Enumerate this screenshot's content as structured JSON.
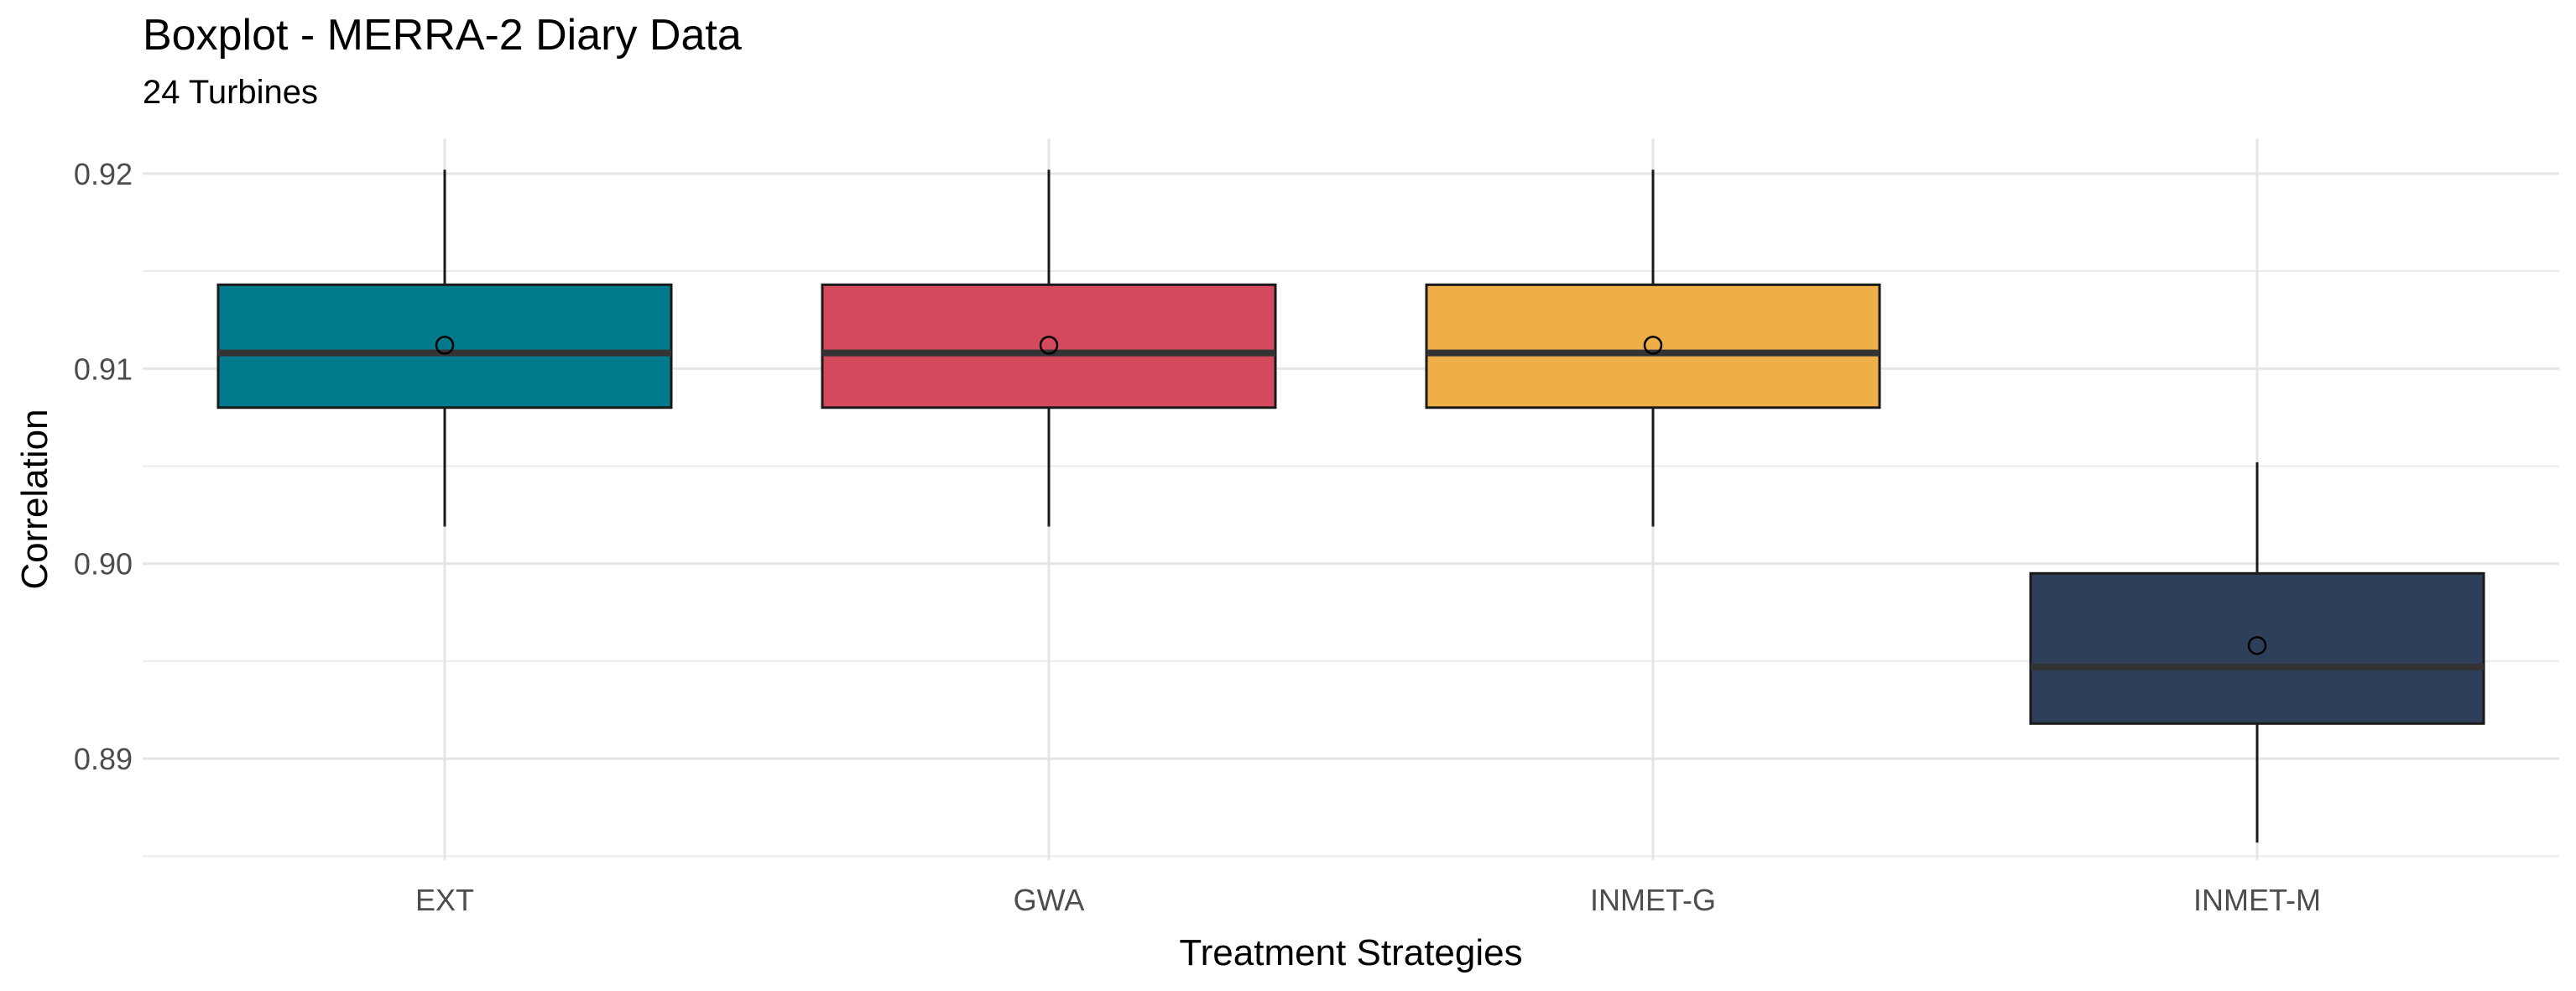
{
  "chart_data": {
    "type": "boxplot",
    "title": "Boxplot - MERRA-2 Diary Data",
    "subtitle": "24 Turbines",
    "xlabel": "Treatment Strategies",
    "ylabel": "Correlation",
    "ylim": [
      0.8848,
      0.9218
    ],
    "yticks": [
      0.89,
      0.9,
      0.91,
      0.92
    ],
    "ytick_labels": [
      "0.89",
      "0.90",
      "0.91",
      "0.92"
    ],
    "grid": true,
    "legend": "none",
    "categories": [
      "EXT",
      "GWA",
      "INMET-G",
      "INMET-M"
    ],
    "boxes": [
      {
        "category": "EXT",
        "whisker_low": 0.9019,
        "q1": 0.908,
        "median": 0.9108,
        "q3": 0.9143,
        "whisker_high": 0.9202,
        "mean": 0.9112,
        "color": "#007A8C"
      },
      {
        "category": "GWA",
        "whisker_low": 0.9019,
        "q1": 0.908,
        "median": 0.9108,
        "q3": 0.9143,
        "whisker_high": 0.9202,
        "mean": 0.9112,
        "color": "#D4495C"
      },
      {
        "category": "INMET-G",
        "whisker_low": 0.9019,
        "q1": 0.908,
        "median": 0.9108,
        "q3": 0.9143,
        "whisker_high": 0.9202,
        "mean": 0.9112,
        "color": "#EEAE48"
      },
      {
        "category": "INMET-M",
        "whisker_low": 0.8857,
        "q1": 0.8918,
        "median": 0.8947,
        "q3": 0.8995,
        "whisker_high": 0.9052,
        "mean": 0.8958,
        "color": "#2E3F59"
      }
    ]
  }
}
